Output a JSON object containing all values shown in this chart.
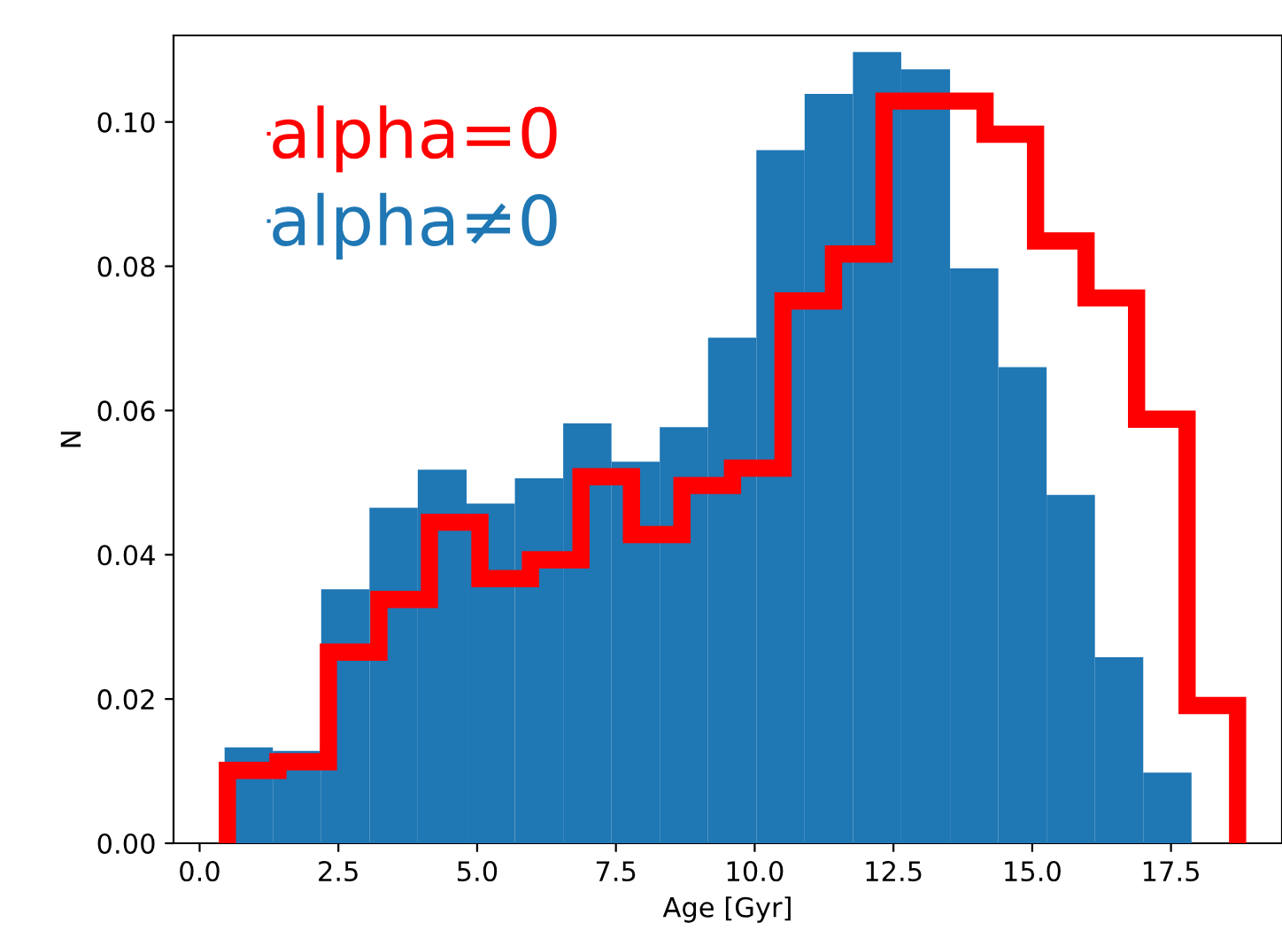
{
  "chart_data": {
    "type": "histogram",
    "xlabel": "Age [Gyr]",
    "ylabel": "N",
    "xlim": [
      -0.47,
      19.5
    ],
    "ylim": [
      0,
      0.112
    ],
    "xticks": [
      {
        "value": 0,
        "label": "0.0"
      },
      2.5,
      {
        "value": 5,
        "label": "5.0"
      },
      7.5,
      {
        "value": 10,
        "label": "10.0"
      },
      12.5,
      {
        "value": 15,
        "label": "15.0"
      },
      17.5
    ],
    "yticks": [
      {
        "value": 0,
        "label": "0.00"
      },
      0.02,
      0.04,
      0.06,
      0.08,
      {
        "value": 0.1,
        "label": "0.10"
      }
    ],
    "legend": "top left",
    "grid": false,
    "bins": [
      0.45,
      1.32,
      2.19,
      3.06,
      3.93,
      4.81,
      5.68,
      6.55,
      7.42,
      8.29,
      9.16,
      10.03,
      10.9,
      11.77,
      12.64,
      13.52,
      14.39,
      15.26,
      16.13,
      17.0,
      17.87
    ],
    "series": [
      {
        "name": "alpha=0",
        "type": "step",
        "color": "#ff0000",
        "x": [
          0.5,
          0.5,
          1.41,
          2.32,
          3.23,
          4.14,
          5.05,
          5.96,
          6.87,
          7.78,
          8.69,
          9.6,
          10.51,
          11.42,
          12.33,
          13.24,
          14.15,
          15.06,
          15.97,
          16.88,
          17.79,
          18.7
        ],
        "values": [
          0,
          0.0101,
          0.0113,
          0.0265,
          0.0338,
          0.0445,
          0.0367,
          0.0393,
          0.0508,
          0.0428,
          0.0496,
          0.052,
          0.0752,
          0.0817,
          0.1029,
          0.1029,
          0.0983,
          0.0835,
          0.0756,
          0.0588,
          0.0191,
          0
        ]
      },
      {
        "name": "alpha≠0",
        "color": "#1f77b4",
        "values": [
          0.0133,
          0.0128,
          0.0352,
          0.0465,
          0.0518,
          0.0471,
          0.0506,
          0.0582,
          0.0529,
          0.0577,
          0.0701,
          0.0961,
          0.1039,
          0.1097,
          0.1073,
          0.0797,
          0.066,
          0.0483,
          0.0258,
          0.0098
        ]
      }
    ]
  }
}
